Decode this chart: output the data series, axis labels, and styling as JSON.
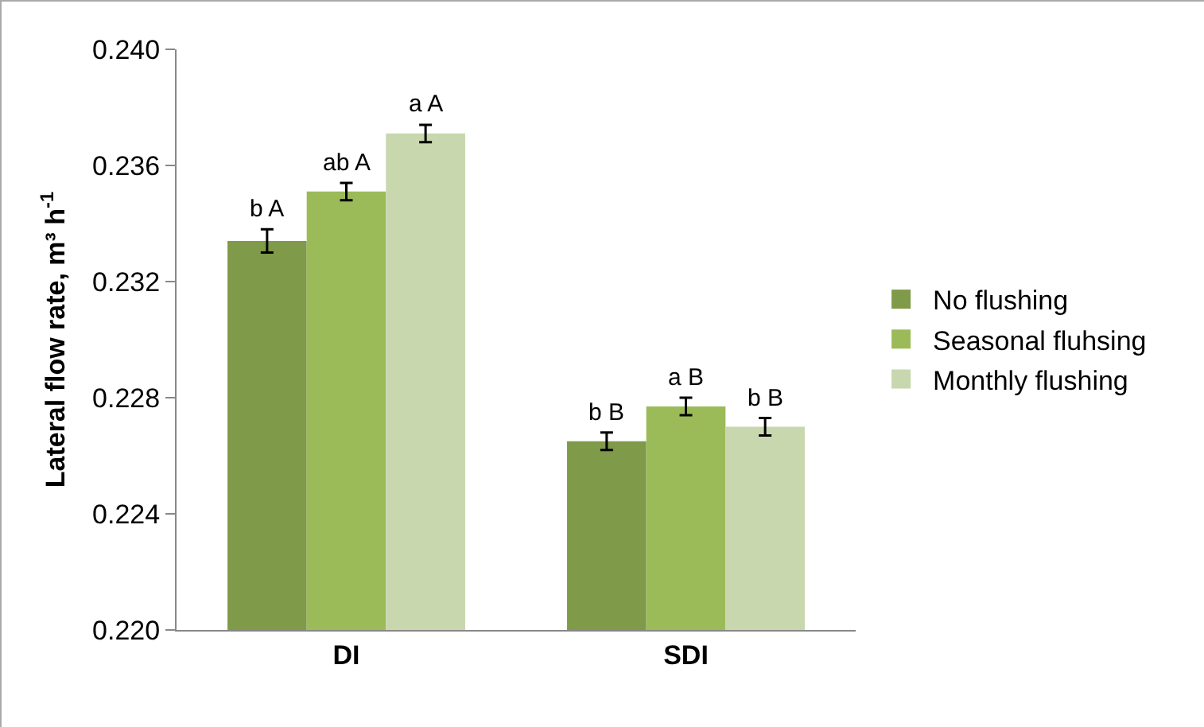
{
  "chart_data": {
    "type": "bar",
    "ylabel": "Lateral flow rate, m³ h$^{-1}$",
    "categories": [
      "DI",
      "SDI"
    ],
    "series": [
      {
        "name": "No flushing",
        "color": "#7f9a48",
        "values": [
          0.2334,
          0.2265
        ],
        "errors": [
          0.0004,
          0.0003
        ],
        "value_labels": [
          "b A",
          "b B"
        ]
      },
      {
        "name": "Seasonal fluhsing",
        "color": "#9bbb59",
        "values": [
          0.2351,
          0.2277
        ],
        "errors": [
          0.0003,
          0.0003
        ],
        "value_labels": [
          "ab A",
          "a B"
        ]
      },
      {
        "name": "Monthly flushing",
        "color": "#c8d7ae",
        "values": [
          0.2371,
          0.227
        ],
        "errors": [
          0.0003,
          0.0003
        ],
        "value_labels": [
          "a A",
          "b B"
        ]
      }
    ],
    "ylim": [
      0.22,
      0.24
    ],
    "yticks": [
      {
        "value": 0.22,
        "label": "0.220"
      },
      {
        "value": 0.224,
        "label": "0.224"
      },
      {
        "value": 0.228,
        "label": "0.228"
      },
      {
        "value": 0.232,
        "label": "0.232"
      },
      {
        "value": 0.236,
        "label": "0.236"
      },
      {
        "value": 0.24,
        "label": "0.240"
      }
    ],
    "grid": false,
    "legend": "right"
  }
}
